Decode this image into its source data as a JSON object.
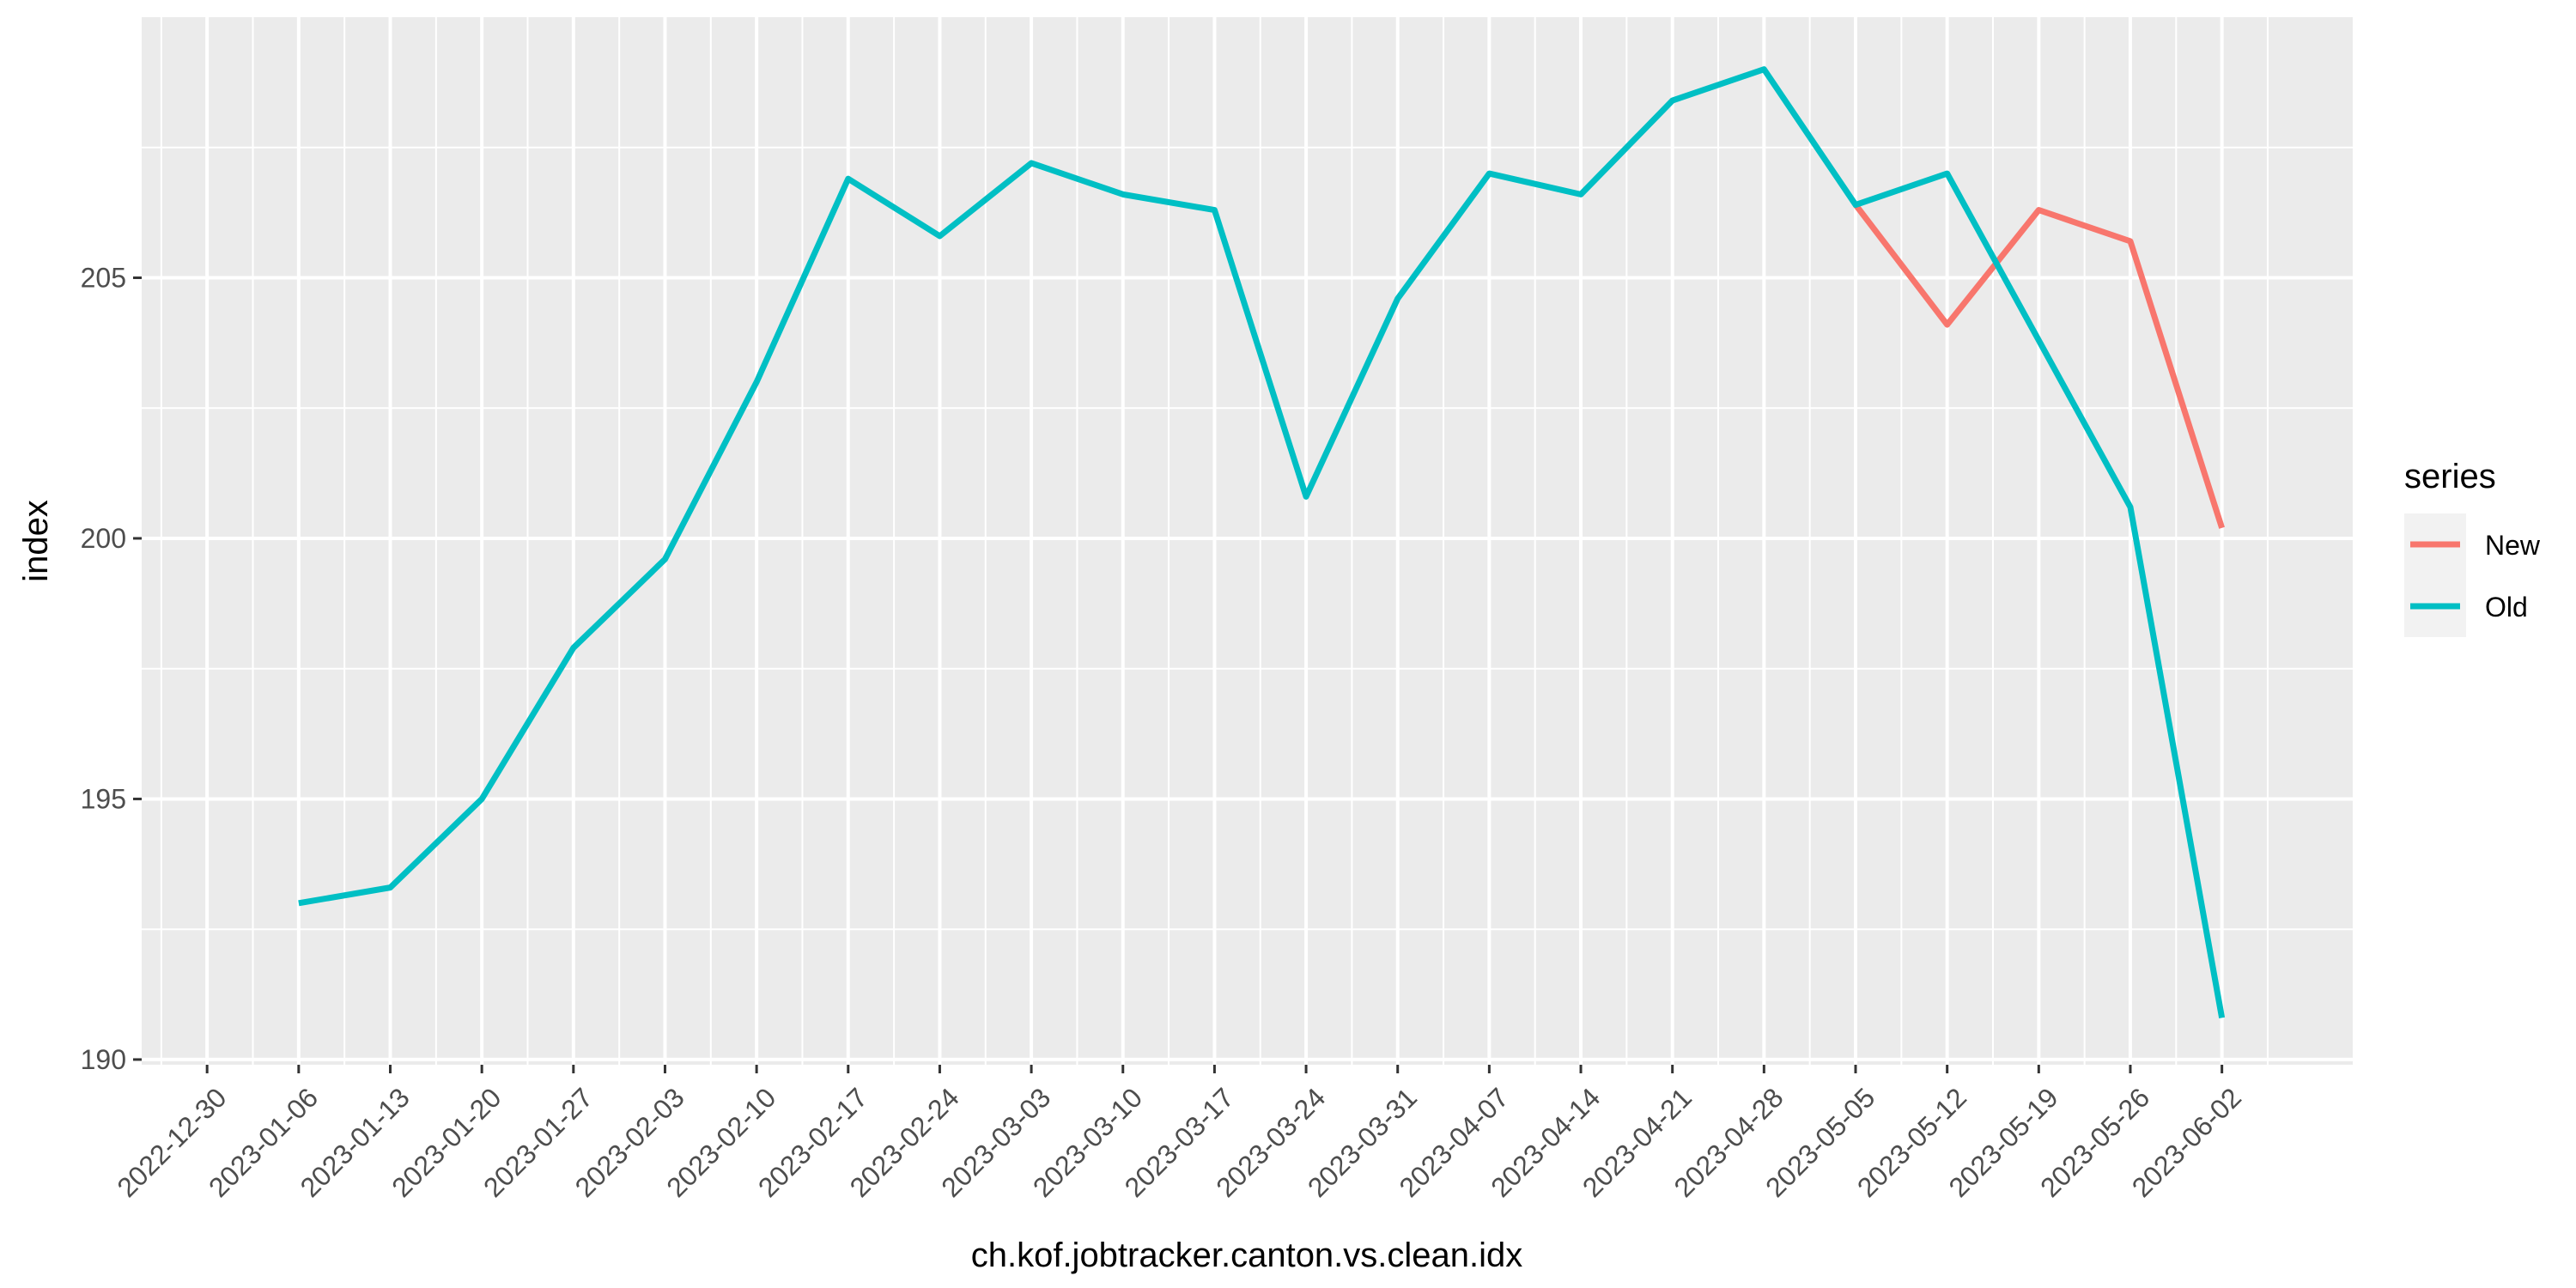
{
  "chart_data": {
    "type": "line",
    "title": "",
    "xlabel": "ch.kof.jobtracker.canton.vs.clean.idx",
    "ylabel": "index",
    "x_ticks": [
      "2022-12-30",
      "2023-01-06",
      "2023-01-13",
      "2023-01-20",
      "2023-01-27",
      "2023-02-03",
      "2023-02-10",
      "2023-02-17",
      "2023-02-24",
      "2023-03-03",
      "2023-03-10",
      "2023-03-17",
      "2023-03-24",
      "2023-03-31",
      "2023-04-07",
      "2023-04-14",
      "2023-04-21",
      "2023-04-28",
      "2023-05-05",
      "2023-05-12",
      "2023-05-19",
      "2023-05-26",
      "2023-06-02"
    ],
    "x_range": [
      "2022-12-25",
      "2023-06-12"
    ],
    "y_ticks": [
      190,
      195,
      200,
      205
    ],
    "ylim": [
      189.9,
      210.0
    ],
    "grid": true,
    "legend": {
      "title": "series",
      "position": "right"
    },
    "series": [
      {
        "name": "New",
        "color": "#F8766D",
        "x": [
          "2023-05-05",
          "2023-05-12",
          "2023-05-19",
          "2023-05-26",
          "2023-06-02"
        ],
        "values": [
          206.4,
          204.1,
          206.3,
          205.7,
          200.2
        ]
      },
      {
        "name": "Old",
        "color": "#00BFC4",
        "x": [
          "2023-01-06",
          "2023-01-13",
          "2023-01-20",
          "2023-01-27",
          "2023-02-03",
          "2023-02-10",
          "2023-02-17",
          "2023-02-24",
          "2023-03-03",
          "2023-03-10",
          "2023-03-17",
          "2023-03-24",
          "2023-03-31",
          "2023-04-07",
          "2023-04-14",
          "2023-04-21",
          "2023-04-28",
          "2023-05-05",
          "2023-05-12",
          "2023-05-19",
          "2023-05-26",
          "2023-06-02"
        ],
        "values": [
          193.0,
          193.3,
          195.0,
          197.9,
          199.6,
          203.0,
          206.9,
          205.8,
          207.2,
          206.6,
          206.3,
          200.8,
          204.6,
          207.0,
          206.6,
          208.4,
          209.0,
          206.4,
          207.0,
          203.8,
          200.6,
          190.8
        ]
      }
    ]
  }
}
